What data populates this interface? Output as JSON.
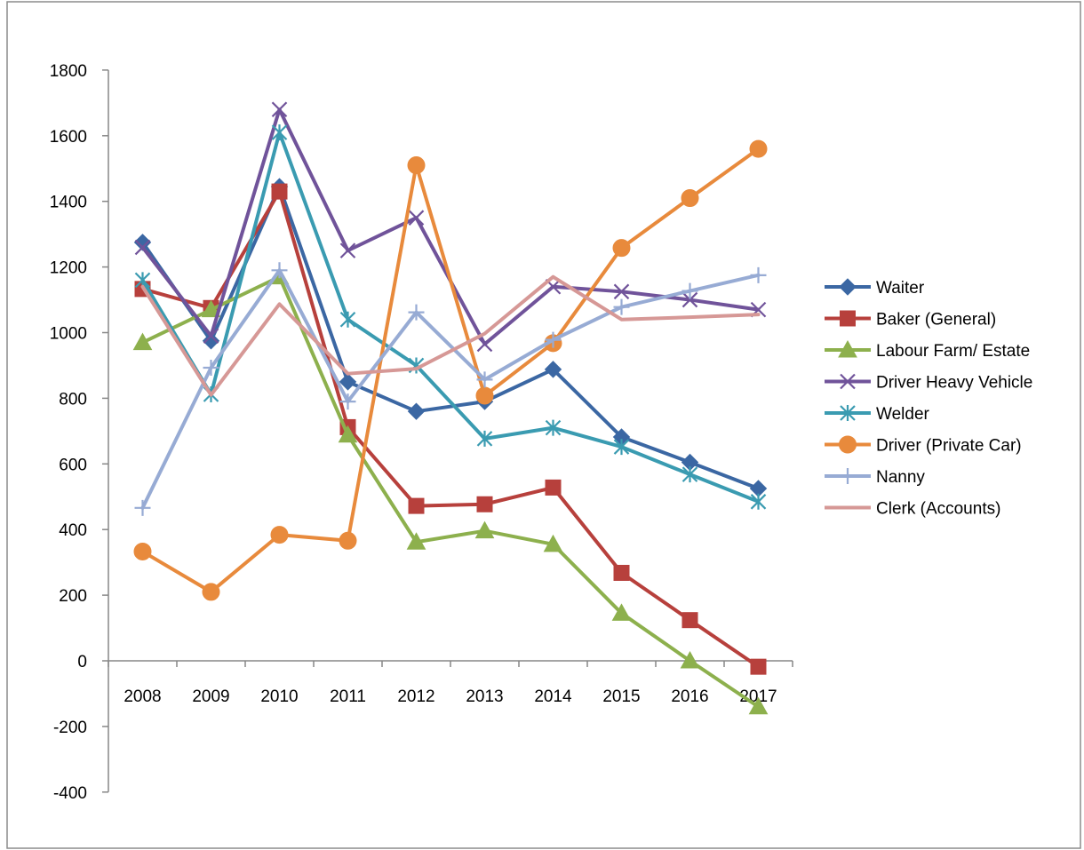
{
  "chart_data": {
    "type": "line",
    "title": "",
    "xlabel": "",
    "ylabel": "",
    "categories": [
      "2008",
      "2009",
      "2010",
      "2011",
      "2012",
      "2013",
      "2014",
      "2015",
      "2016",
      "2017"
    ],
    "ylim": [
      -400,
      1800
    ],
    "yticks": [
      -400,
      -200,
      0,
      200,
      400,
      600,
      800,
      1000,
      1200,
      1400,
      1600,
      1800
    ],
    "grid": false,
    "legend_position": "right",
    "series": [
      {
        "name": "Waiter",
        "color": "#3b67a3",
        "marker": "diamond",
        "values": [
          1275,
          975,
          1445,
          850,
          760,
          790,
          888,
          682,
          605,
          525
        ]
      },
      {
        "name": "Baker (General)",
        "color": "#b7403c",
        "marker": "square",
        "values": [
          1133,
          1075,
          1430,
          712,
          472,
          477,
          528,
          268,
          124,
          -18
        ]
      },
      {
        "name": "Labour Farm/ Estate",
        "color": "#8db04d",
        "marker": "triangle",
        "values": [
          970,
          1070,
          1170,
          688,
          362,
          396,
          355,
          145,
          0,
          -140
        ]
      },
      {
        "name": "Driver Heavy Vehicle",
        "color": "#70539a",
        "marker": "x",
        "values": [
          1260,
          990,
          1680,
          1250,
          1350,
          965,
          1140,
          1125,
          1100,
          1070
        ]
      },
      {
        "name": "Welder",
        "color": "#3a9bb1",
        "marker": "asterisk",
        "values": [
          1160,
          812,
          1610,
          1040,
          900,
          677,
          710,
          652,
          568,
          485
        ]
      },
      {
        "name": "Driver (Private Car)",
        "color": "#e88a3c",
        "marker": "circle",
        "values": [
          333,
          210,
          384,
          366,
          1510,
          808,
          968,
          1258,
          1410,
          1560
        ]
      },
      {
        "name": "Nanny",
        "color": "#97abd4",
        "marker": "plus",
        "values": [
          466,
          893,
          1190,
          790,
          1062,
          857,
          978,
          1078,
          1127,
          1175
        ]
      },
      {
        "name": "Clerk (Accounts)",
        "color": "#d69896",
        "marker": "none",
        "values": [
          1140,
          810,
          1087,
          875,
          890,
          997,
          1170,
          1040,
          1047,
          1055
        ]
      }
    ]
  }
}
